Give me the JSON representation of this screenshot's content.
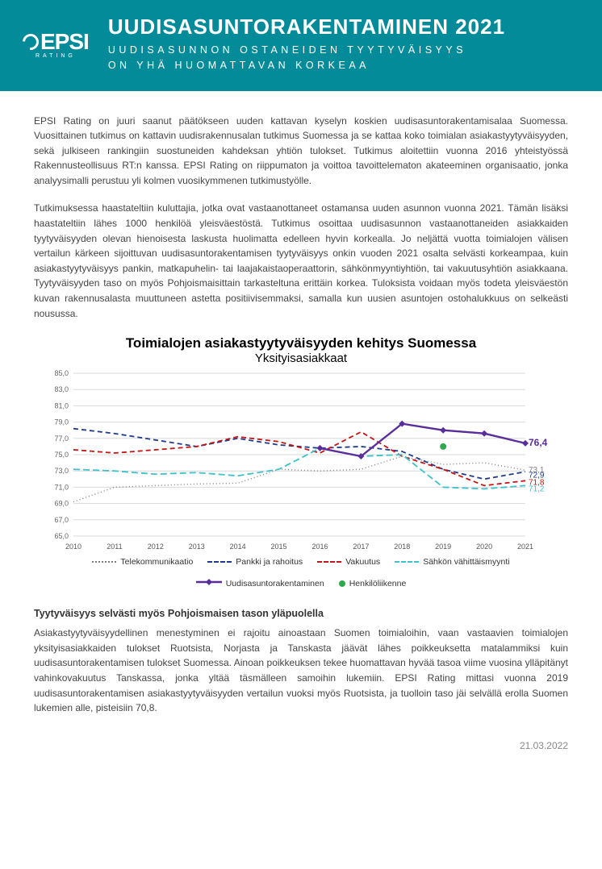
{
  "header": {
    "logo_main": "EPSI",
    "logo_sub": "RATING",
    "title": "UUDISASUNTORAKENTAMINEN 2021",
    "subtitle_line1": "UUDISASUNNON OSTANEIDEN TYYTYVÄISYYS",
    "subtitle_line2": "ON YHÄ HUOMATTAVAN KORKEAA"
  },
  "intro_p1": "EPSI Rating on juuri saanut päätökseen uuden kattavan kyselyn koskien uudisasuntorakentamisalaa Suomessa. Vuosittainen tutkimus on kattavin uudisrakennusalan tutkimus Suomessa ja se kattaa koko toimialan asiakastyytyväisyyden, sekä julkiseen rankingiin suostuneiden kahdeksan yhtiön tulokset. Tutkimus aloitettiin vuonna 2016 yhteistyössä Rakennusteollisuus RT:n kanssa.  EPSI Rating on riippumaton ja voittoa tavoittelematon akateeminen organisaatio, jonka analyysimalli perustuu yli kolmen vuosikymmenen tutkimustyölle.",
  "intro_p2": "Tutkimuksessa haastateltiin kuluttajia, jotka ovat vastaanottaneet ostamansa uuden asunnon vuonna 2021. Tämän lisäksi haastateltiin lähes 1000 henkilöä yleisväestöstä. Tutkimus osoittaa uudisasunnon vastaanottaneiden asiakkaiden tyytyväisyyden olevan hienoisesta laskusta huolimatta edelleen hyvin korkealla. Jo neljättä vuotta toimialojen välisen vertailun kärkeen sijoittuvan uudisasuntorakentamisen tyytyväisyys onkin vuoden 2021 osalta selvästi korkeampaa, kuin asiakastyytyväisyys pankin, matkapuhelin- tai laajakaistaoperaattorin, sähkönmyyntiyhtiön, tai vakuutusyhtiön asiakkaana. Tyytyväisyyden taso on myös Pohjoismaisittain tarkasteltuna erittäin korkea. Tuloksista voidaan myös todeta yleisväestön kuvan rakennusalasta muuttuneen astetta positiivisemmaksi, samalla kun uusien asuntojen ostohalukkuus on selkeästi nousussa.",
  "chart": {
    "title": "Toimialojen asiakastyytyväisyyden kehitys Suomessa",
    "subtitle": "Yksityisasiakkaat",
    "type": "line",
    "x_categories": [
      "2010",
      "2011",
      "2012",
      "2013",
      "2014",
      "2015",
      "2016",
      "2017",
      "2018",
      "2019",
      "2020",
      "2021"
    ],
    "ylim": [
      65.0,
      85.0
    ],
    "ytick_step": 2.0,
    "y_ticks": [
      "65,0",
      "67,0",
      "69,0",
      "71,0",
      "73,0",
      "75,0",
      "77,0",
      "79,0",
      "81,0",
      "83,0",
      "85,0"
    ],
    "background_color": "#ffffff",
    "grid_color": "#d9d9d9",
    "axis_font_size": 9,
    "series": {
      "telekommunikaatio": {
        "label": "Telekommunikaatio",
        "color": "#7f7f7f",
        "dash": "1,3",
        "width": 1.4,
        "marker": "none",
        "values": [
          69.2,
          71.0,
          71.2,
          71.4,
          71.5,
          73.2,
          73.0,
          73.2,
          74.8,
          73.8,
          74.0,
          73.1
        ]
      },
      "pankki": {
        "label": "Pankki ja rahoitus",
        "color": "#1f3b8c",
        "dash": "6,4",
        "width": 1.8,
        "marker": "none",
        "values": [
          78.2,
          77.6,
          76.8,
          76.0,
          77.0,
          76.2,
          75.8,
          76.0,
          75.4,
          73.2,
          72.0,
          72.9
        ]
      },
      "vakuutus": {
        "label": "Vakuutus",
        "color": "#c81414",
        "dash": "6,4",
        "width": 1.8,
        "marker": "none",
        "values": [
          75.6,
          75.2,
          75.6,
          76.0,
          77.2,
          76.6,
          75.2,
          77.8,
          74.8,
          73.2,
          71.2,
          71.8
        ]
      },
      "sahko": {
        "label": "Sähkön vähittäismyynti",
        "color": "#3ec1cc",
        "dash": "8,4",
        "width": 1.8,
        "marker": "none",
        "values": [
          73.2,
          73.0,
          72.6,
          72.8,
          72.4,
          73.2,
          75.8,
          74.8,
          75.0,
          71.0,
          70.8,
          71.2
        ]
      },
      "uudisasunto": {
        "label": "Uudisasuntorakentaminen",
        "color": "#5a2d9c",
        "dash": "none",
        "width": 2.4,
        "marker": "diamond",
        "values": [
          null,
          null,
          null,
          null,
          null,
          null,
          75.8,
          74.8,
          78.8,
          78.0,
          77.6,
          76.4
        ]
      },
      "henkiloliikenne": {
        "label": "Henkilöliikenne",
        "color": "#2fa84f",
        "dash": "none",
        "width": 0,
        "marker": "circle",
        "values": [
          null,
          null,
          null,
          null,
          null,
          null,
          null,
          null,
          null,
          76.0,
          null,
          null
        ]
      }
    },
    "end_labels": [
      {
        "text": "76,4",
        "color": "#5a2d9c",
        "y": 76.4,
        "bold": true
      },
      {
        "text": "73,1",
        "color": "#7f7f7f",
        "y": 73.1,
        "bold": false
      },
      {
        "text": "72,9",
        "color": "#1f3b8c",
        "y": 72.5,
        "bold": false
      },
      {
        "text": "71,8",
        "color": "#c81414",
        "y": 71.6,
        "bold": false
      },
      {
        "text": "71,2",
        "color": "#3ec1cc",
        "y": 70.8,
        "bold": false
      }
    ]
  },
  "section2_heading": "Tyytyväisyys selvästi myös Pohjoismaisen tason yläpuolella",
  "section2_p": "Asiakastyytyväisyydellinen menestyminen ei rajoitu ainoastaan Suomen toimialoihin, vaan vastaavien toimialojen yksityisasiakkaiden tulokset Ruotsista, Norjasta ja Tanskasta jäävät lähes poikkeuksetta matalammiksi kuin uudisasuntorakentamisen tulokset Suomessa. Ainoan poikkeuksen tekee huomattavan hyvää tasoa viime vuosina ylläpitänyt vahinkovakuutus Tanskassa, jonka yltää täsmälleen samoihin lukemiin. EPSI Rating mittasi vuonna 2019 uudisasuntorakentamisen asiakastyytyväisyyden vertailun vuoksi myös Ruotsista, ja tuolloin taso jäi selvällä erolla Suomen lukemien alle, pisteisiin 70,8.",
  "footer_date": "21.03.2022"
}
